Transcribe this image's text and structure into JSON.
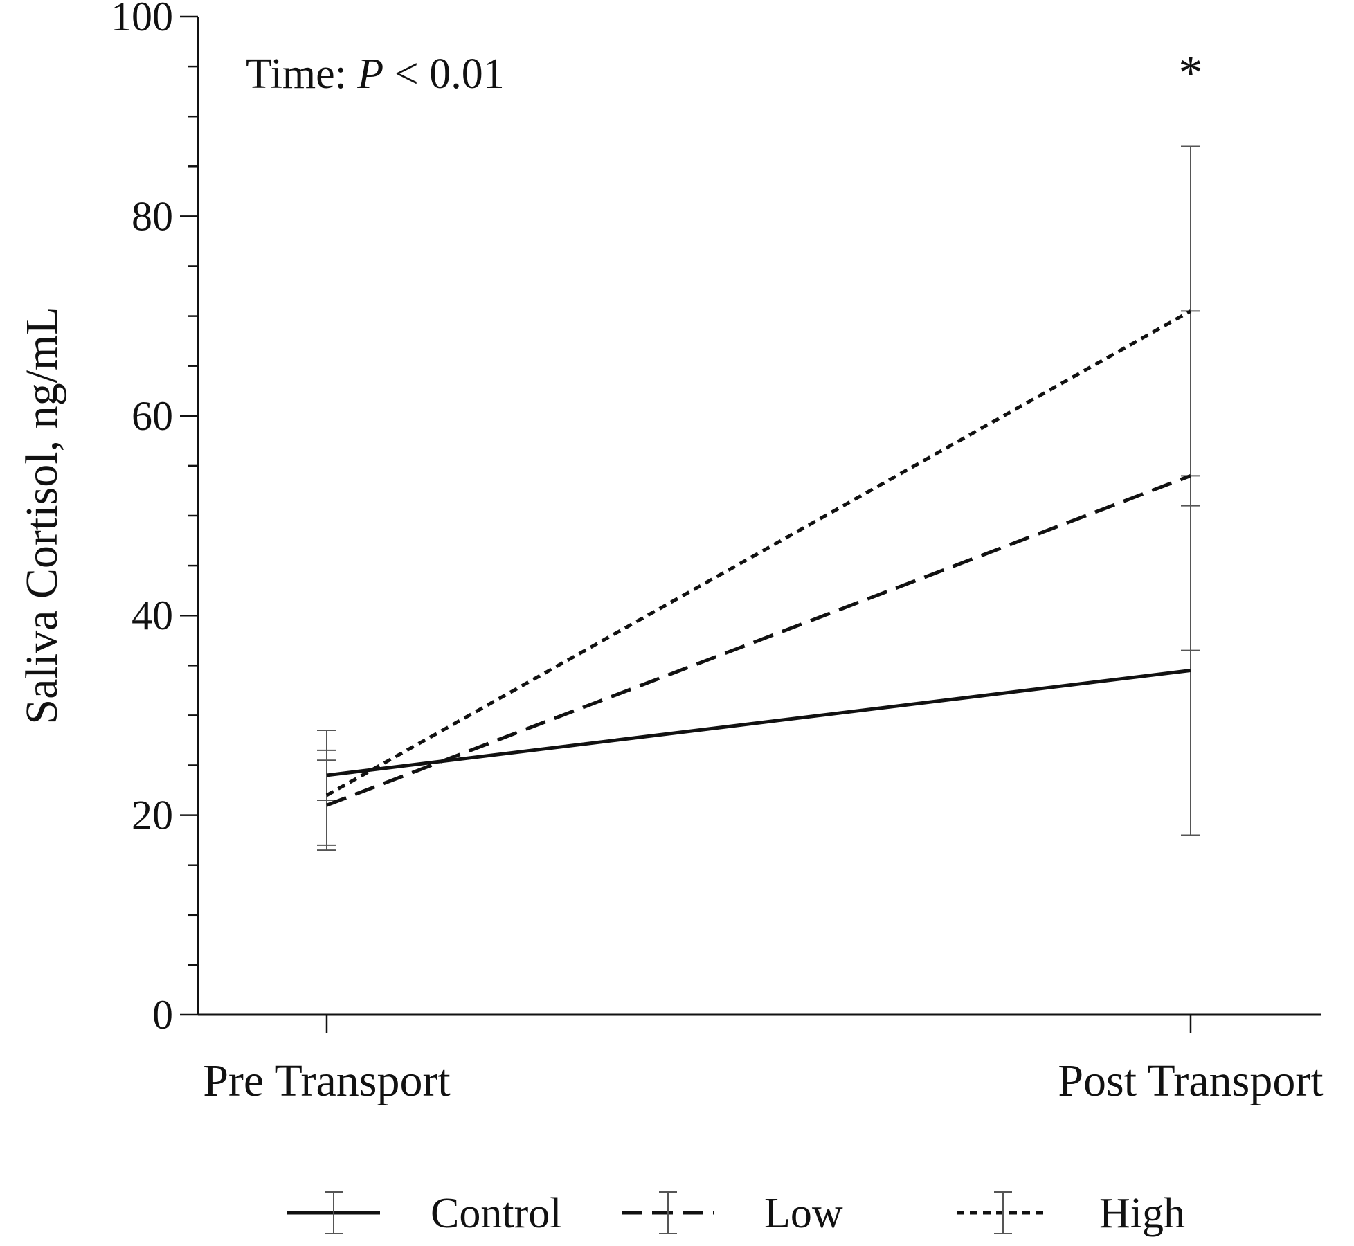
{
  "chart_data": {
    "type": "line",
    "title": "",
    "annotation": {
      "prefix": "Time: ",
      "italic": "P",
      "suffix": " < 0.01"
    },
    "significance_marker": "*",
    "significance_at": "Post Transport",
    "xlabel": "",
    "ylabel": "Saliva Cortisol, ng/mL",
    "ylim": [
      0,
      100
    ],
    "y_major_ticks": [
      0,
      20,
      40,
      60,
      80,
      100
    ],
    "y_minor_step": 5,
    "categories": [
      "Pre Transport",
      "Post Transport"
    ],
    "series": [
      {
        "name": "Control",
        "line_style": "solid",
        "values": [
          24.0,
          34.5
        ],
        "error": [
          [
            21.5,
            26.5
          ],
          [
            18.0,
            51.0
          ]
        ]
      },
      {
        "name": "Low",
        "line_style": "dashed",
        "values": [
          21.0,
          54.0
        ],
        "error": [
          [
            17.0,
            25.5
          ],
          [
            36.5,
            70.5
          ]
        ]
      },
      {
        "name": "High",
        "line_style": "dotted",
        "values": [
          22.0,
          70.5
        ],
        "error": [
          [
            16.5,
            28.5
          ],
          [
            54.0,
            87.0
          ]
        ]
      }
    ],
    "legend_position": "bottom",
    "grid": false
  }
}
